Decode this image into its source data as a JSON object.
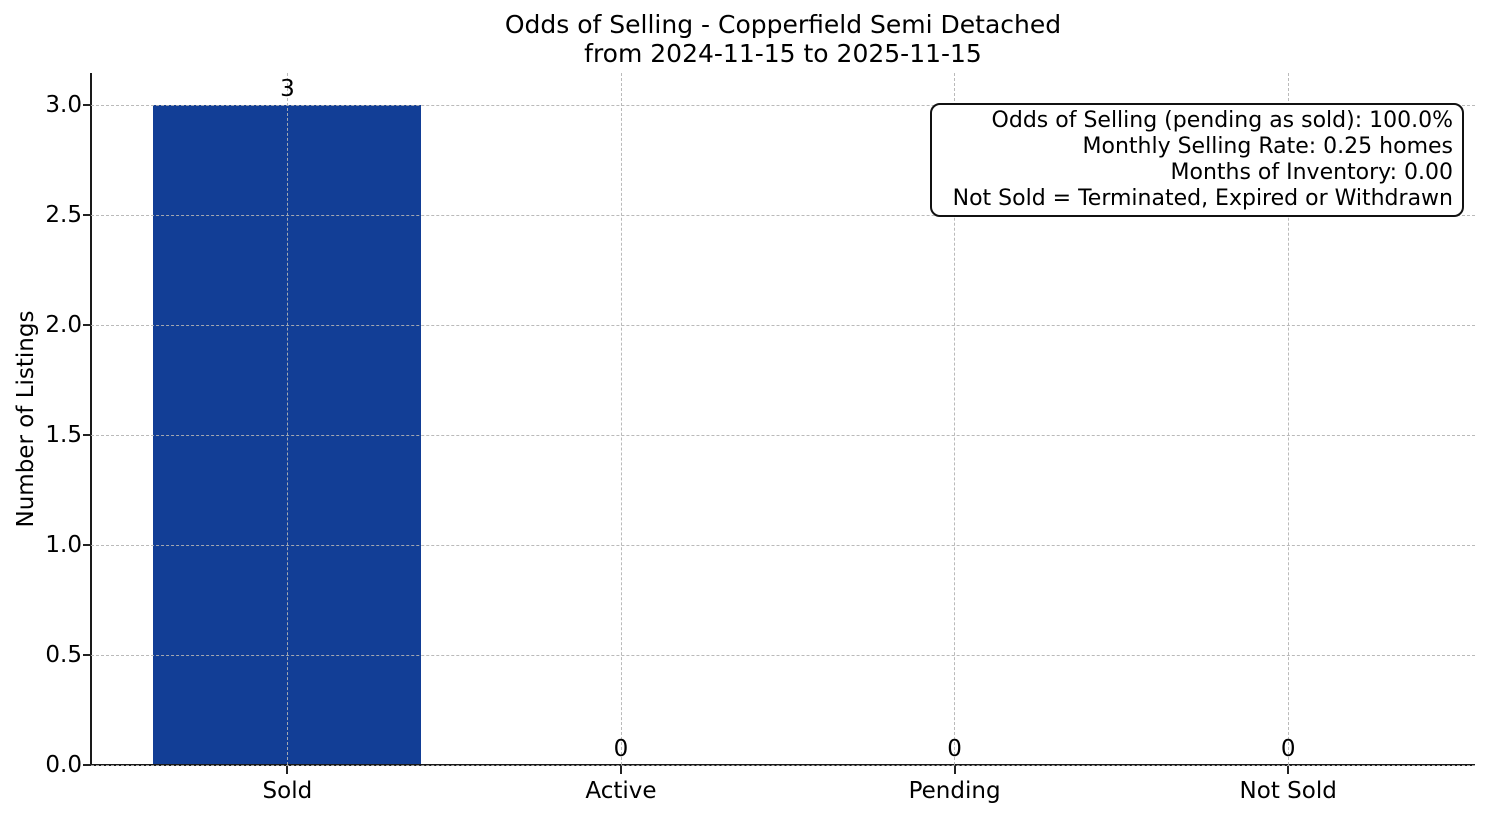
{
  "chart_data": {
    "type": "bar",
    "title": "Odds of Selling - Copperfield Semi Detached\nfrom 2024-11-15 to 2025-11-15",
    "title_lines": [
      "Odds of Selling - Copperfield Semi Detached",
      "from 2024-11-15 to 2025-11-15"
    ],
    "xlabel": "",
    "ylabel": "Number of Listings",
    "categories": [
      "Sold",
      "Active",
      "Pending",
      "Not Sold"
    ],
    "values": [
      3,
      0,
      0,
      0
    ],
    "value_labels": [
      "3",
      "0",
      "0",
      "0"
    ],
    "yticks": [
      0,
      0.5,
      1,
      1.5,
      2,
      2.5,
      3
    ],
    "ytick_labels": [
      "0.0",
      "0.5",
      "1.0",
      "1.5",
      "2.0",
      "2.5",
      "3.0"
    ],
    "ylim": [
      0,
      3.15
    ],
    "grid": {
      "show": true,
      "axis": "both",
      "linestyle": "dashed",
      "color": "#b0b0b0"
    },
    "bar_color": "#123e96",
    "background_color": "#ffffff",
    "text_color": "#000000",
    "legend": {
      "visible": false
    },
    "annotation": {
      "position": "top-right",
      "lines": [
        "Odds of Selling (pending as sold): 100.0%",
        "Monthly Selling Rate: 0.25 homes",
        "Months of Inventory: 0.00",
        "Not Sold = Terminated, Expired or Withdrawn"
      ]
    }
  }
}
